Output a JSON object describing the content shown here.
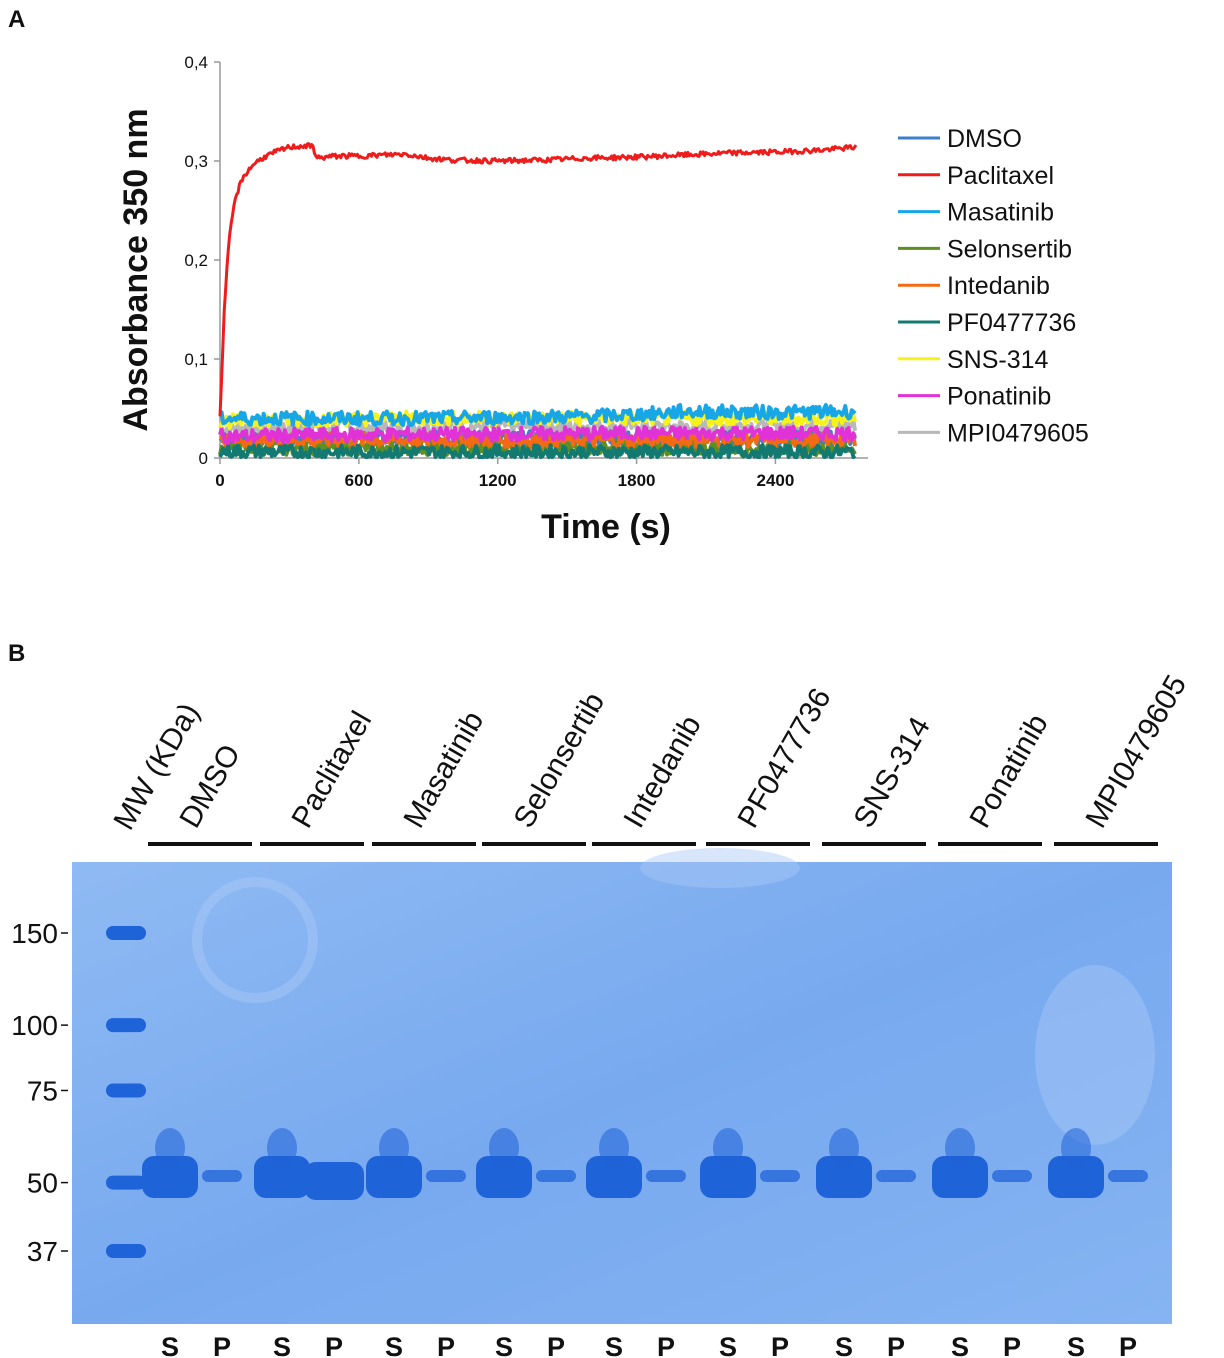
{
  "panel_a": {
    "letter": "A"
  },
  "panel_b": {
    "letter": "B"
  },
  "chart_data": {
    "type": "line",
    "title": "",
    "xlabel": "Time (s)",
    "ylabel": "Absorbance 350 nm",
    "xlim": [
      0,
      2800
    ],
    "ylim": [
      0,
      0.4
    ],
    "xticks": [
      0,
      600,
      1200,
      1800,
      2400
    ],
    "xtick_labels": [
      "0",
      "600",
      "1200",
      "1800",
      "2400"
    ],
    "yticks": [
      0,
      0.1,
      0.2,
      0.3,
      0.4
    ],
    "ytick_labels": [
      "0",
      "0,1",
      "0,2",
      "0,3",
      "0,4"
    ],
    "legend_position": "right",
    "series": [
      {
        "name": "DMSO",
        "color": "#3d7fc9",
        "x": [
          0,
          400,
          800,
          1200,
          1600,
          2000,
          2400,
          2750
        ],
        "y": [
          0.02,
          0.02,
          0.02,
          0.02,
          0.02,
          0.02,
          0.02,
          0.02
        ]
      },
      {
        "name": "Paclitaxel",
        "color": "#ef1c1c",
        "x": [
          0,
          20,
          40,
          60,
          80,
          100,
          150,
          200,
          250,
          300,
          350,
          400,
          420,
          500,
          600,
          700,
          800,
          900,
          1000,
          1200,
          1400,
          1600,
          1800,
          2000,
          2200,
          2400,
          2600,
          2750
        ],
        "y": [
          0.04,
          0.16,
          0.22,
          0.255,
          0.272,
          0.284,
          0.298,
          0.305,
          0.31,
          0.314,
          0.315,
          0.315,
          0.303,
          0.305,
          0.305,
          0.306,
          0.307,
          0.303,
          0.301,
          0.3,
          0.301,
          0.303,
          0.304,
          0.306,
          0.308,
          0.309,
          0.311,
          0.314
        ]
      },
      {
        "name": "Masatinib",
        "color": "#17a6e6",
        "x": [
          0,
          400,
          800,
          1200,
          1600,
          1900,
          2000,
          2400,
          2750
        ],
        "y": [
          0.04,
          0.04,
          0.04,
          0.041,
          0.042,
          0.045,
          0.047,
          0.046,
          0.047
        ]
      },
      {
        "name": "Selonsertib",
        "color": "#5d8f22",
        "x": [
          0,
          400,
          800,
          1200,
          1600,
          2000,
          2400,
          2750
        ],
        "y": [
          0.01,
          0.01,
          0.01,
          0.01,
          0.01,
          0.01,
          0.01,
          0.01
        ]
      },
      {
        "name": "Intedanib",
        "color": "#f46a12",
        "x": [
          0,
          400,
          800,
          1200,
          1600,
          2000,
          2400,
          2750
        ],
        "y": [
          0.018,
          0.018,
          0.018,
          0.018,
          0.018,
          0.018,
          0.018,
          0.018
        ]
      },
      {
        "name": "PF0477736",
        "color": "#137a72",
        "x": [
          0,
          400,
          800,
          1200,
          1600,
          2000,
          2400,
          2750
        ],
        "y": [
          0.007,
          0.006,
          0.006,
          0.006,
          0.006,
          0.006,
          0.006,
          0.006
        ]
      },
      {
        "name": "SNS-314",
        "color": "#f6f21a",
        "x": [
          0,
          400,
          800,
          1200,
          1600,
          2000,
          2400,
          2750
        ],
        "y": [
          0.037,
          0.039,
          0.04,
          0.04,
          0.04,
          0.04,
          0.04,
          0.04
        ]
      },
      {
        "name": "Ponatinib",
        "color": "#e132d8",
        "x": [
          0,
          400,
          800,
          1200,
          1600,
          2000,
          2400,
          2750
        ],
        "y": [
          0.022,
          0.023,
          0.024,
          0.024,
          0.025,
          0.025,
          0.025,
          0.025
        ]
      },
      {
        "name": "MPI0479605",
        "color": "#b8b8b8",
        "x": [
          0,
          400,
          800,
          1200,
          1600,
          2000,
          2400,
          2750
        ],
        "y": [
          0.03,
          0.031,
          0.031,
          0.032,
          0.032,
          0.032,
          0.033,
          0.033
        ]
      }
    ]
  },
  "gel": {
    "mw_label": "MW (KDa)",
    "markers": [
      "150",
      "100",
      "75",
      "50",
      "37"
    ],
    "marker_values": [
      150,
      100,
      75,
      50,
      37
    ],
    "treatments": [
      "DMSO",
      "Paclitaxel",
      "Masatinib",
      "Selonsertib",
      "Intedanib",
      "PF0477736",
      "SNS-314",
      "Ponatinib",
      "MPI0479605"
    ],
    "lane_labels": [
      "S",
      "P"
    ],
    "pellet_band_intensity": [
      0.15,
      1.0,
      0.15,
      0.15,
      0.15,
      0.15,
      0.15,
      0.15,
      0.15
    ],
    "gel_color": "#7fb0f0",
    "band_color": "#1f63d8"
  }
}
